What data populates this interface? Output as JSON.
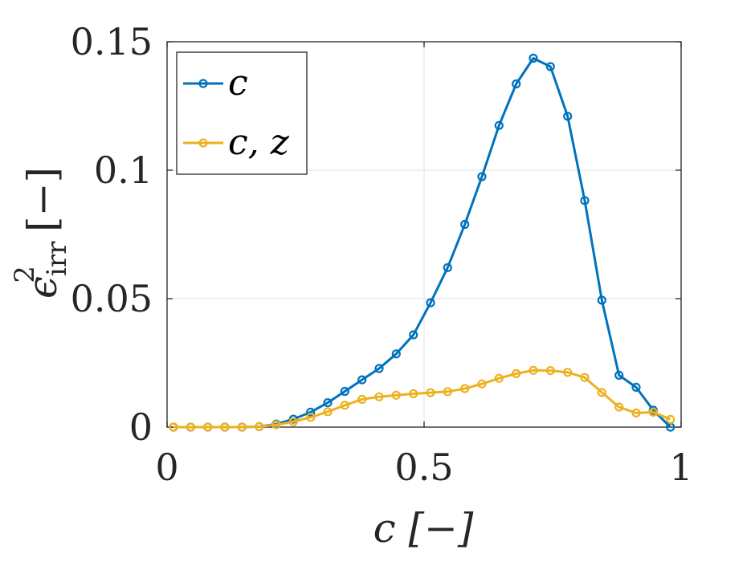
{
  "chart_data": {
    "type": "line",
    "xlabel": "c [−]",
    "ylabel_main": "ϵ",
    "ylabel_sup": "2",
    "ylabel_sub": "irr",
    "ylabel_unit": "[−]",
    "xlim": [
      0,
      1
    ],
    "ylim": [
      0,
      0.15
    ],
    "xticks": [
      0,
      0.5,
      1
    ],
    "xtick_labels": [
      "0",
      "0.5",
      "1"
    ],
    "yticks": [
      0,
      0.05,
      0.1,
      0.15
    ],
    "ytick_labels": [
      "0",
      "0.05",
      "0.1",
      "0.15"
    ],
    "grid": true,
    "legend_position": "top-left",
    "series": [
      {
        "name": "c",
        "color": "#0072BD",
        "x": [
          0.0125,
          0.0458,
          0.0792,
          0.1125,
          0.1458,
          0.1792,
          0.2125,
          0.2458,
          0.2792,
          0.3125,
          0.3458,
          0.3792,
          0.4125,
          0.4458,
          0.4792,
          0.5125,
          0.5458,
          0.5792,
          0.6125,
          0.6458,
          0.6792,
          0.7125,
          0.7458,
          0.7792,
          0.8125,
          0.8458,
          0.8792,
          0.9125,
          0.9458,
          0.9792
        ],
        "y": [
          0.0,
          0.0,
          0.0,
          0.0,
          0.0,
          0.0002,
          0.0012,
          0.0031,
          0.0058,
          0.0095,
          0.0139,
          0.0184,
          0.0228,
          0.0285,
          0.0359,
          0.0484,
          0.0621,
          0.0789,
          0.0975,
          0.1174,
          0.1336,
          0.1436,
          0.1403,
          0.121,
          0.0882,
          0.0494,
          0.0202,
          0.0155,
          0.0066,
          0.0
        ]
      },
      {
        "name": "c, z",
        "color": "#EDB120",
        "x": [
          0.0125,
          0.0458,
          0.0792,
          0.1125,
          0.1458,
          0.1792,
          0.2125,
          0.2458,
          0.2792,
          0.3125,
          0.3458,
          0.3792,
          0.4125,
          0.4458,
          0.4792,
          0.5125,
          0.5458,
          0.5792,
          0.6125,
          0.6458,
          0.6792,
          0.7125,
          0.7458,
          0.7792,
          0.8125,
          0.8458,
          0.8792,
          0.9125,
          0.9458,
          0.9792
        ],
        "y": [
          0.0,
          0.0,
          0.0,
          0.0,
          0.0,
          0.0002,
          0.0009,
          0.0021,
          0.0038,
          0.006,
          0.0085,
          0.0108,
          0.0118,
          0.0124,
          0.013,
          0.0134,
          0.0138,
          0.015,
          0.0168,
          0.019,
          0.0208,
          0.0221,
          0.022,
          0.0213,
          0.0193,
          0.0135,
          0.0078,
          0.0055,
          0.0058,
          0.003
        ]
      }
    ]
  }
}
